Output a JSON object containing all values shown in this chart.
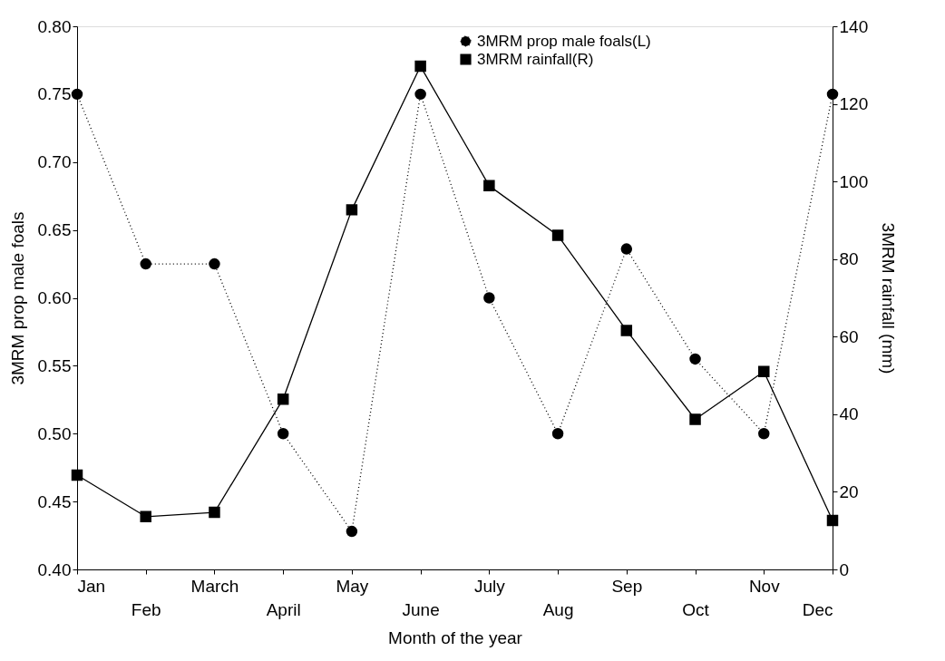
{
  "chart_data": {
    "type": "line",
    "xlabel": "Month of the year",
    "ylabel": "3MRM prop male foals",
    "y2label": "3MRM rainfall (mm)",
    "categories": [
      "Jan",
      "Feb",
      "March",
      "April",
      "May",
      "June",
      "July",
      "Aug",
      "Sep",
      "Oct",
      "Nov",
      "Dec"
    ],
    "series": [
      {
        "name": "3MRM prop male foals(L)",
        "color": "#000000",
        "marker": "circle",
        "line_style": "dotted",
        "values": [
          0.75,
          0.625,
          0.625,
          0.5,
          0.428,
          0.75,
          0.6,
          0.5,
          0.636,
          0.555,
          0.5,
          0.75
        ]
      },
      {
        "name": "3MRM rainfall(R)",
        "color": "#000000",
        "marker": "square",
        "line_style": "solid",
        "axis": "y2",
        "values": [
          24.3,
          13.6,
          14.7,
          43.9,
          92.7,
          129.7,
          98.9,
          86.1,
          61.6,
          38.7,
          51.0,
          12.6
        ]
      }
    ],
    "ylim": [
      0.4,
      0.8
    ],
    "yticks": [
      {
        "value": 0.4,
        "label": "0.40"
      },
      0.45,
      {
        "value": 0.5,
        "label": "0.50"
      },
      0.55,
      {
        "value": 0.6,
        "label": "0.60"
      },
      0.65,
      {
        "value": 0.7,
        "label": "0.70"
      },
      0.75,
      {
        "value": 0.8,
        "label": "0.80"
      }
    ],
    "y2lim": [
      0,
      140
    ],
    "y2ticks": [
      0,
      20,
      40,
      60,
      80,
      100,
      120,
      140
    ],
    "grid": false,
    "legend": "top"
  }
}
